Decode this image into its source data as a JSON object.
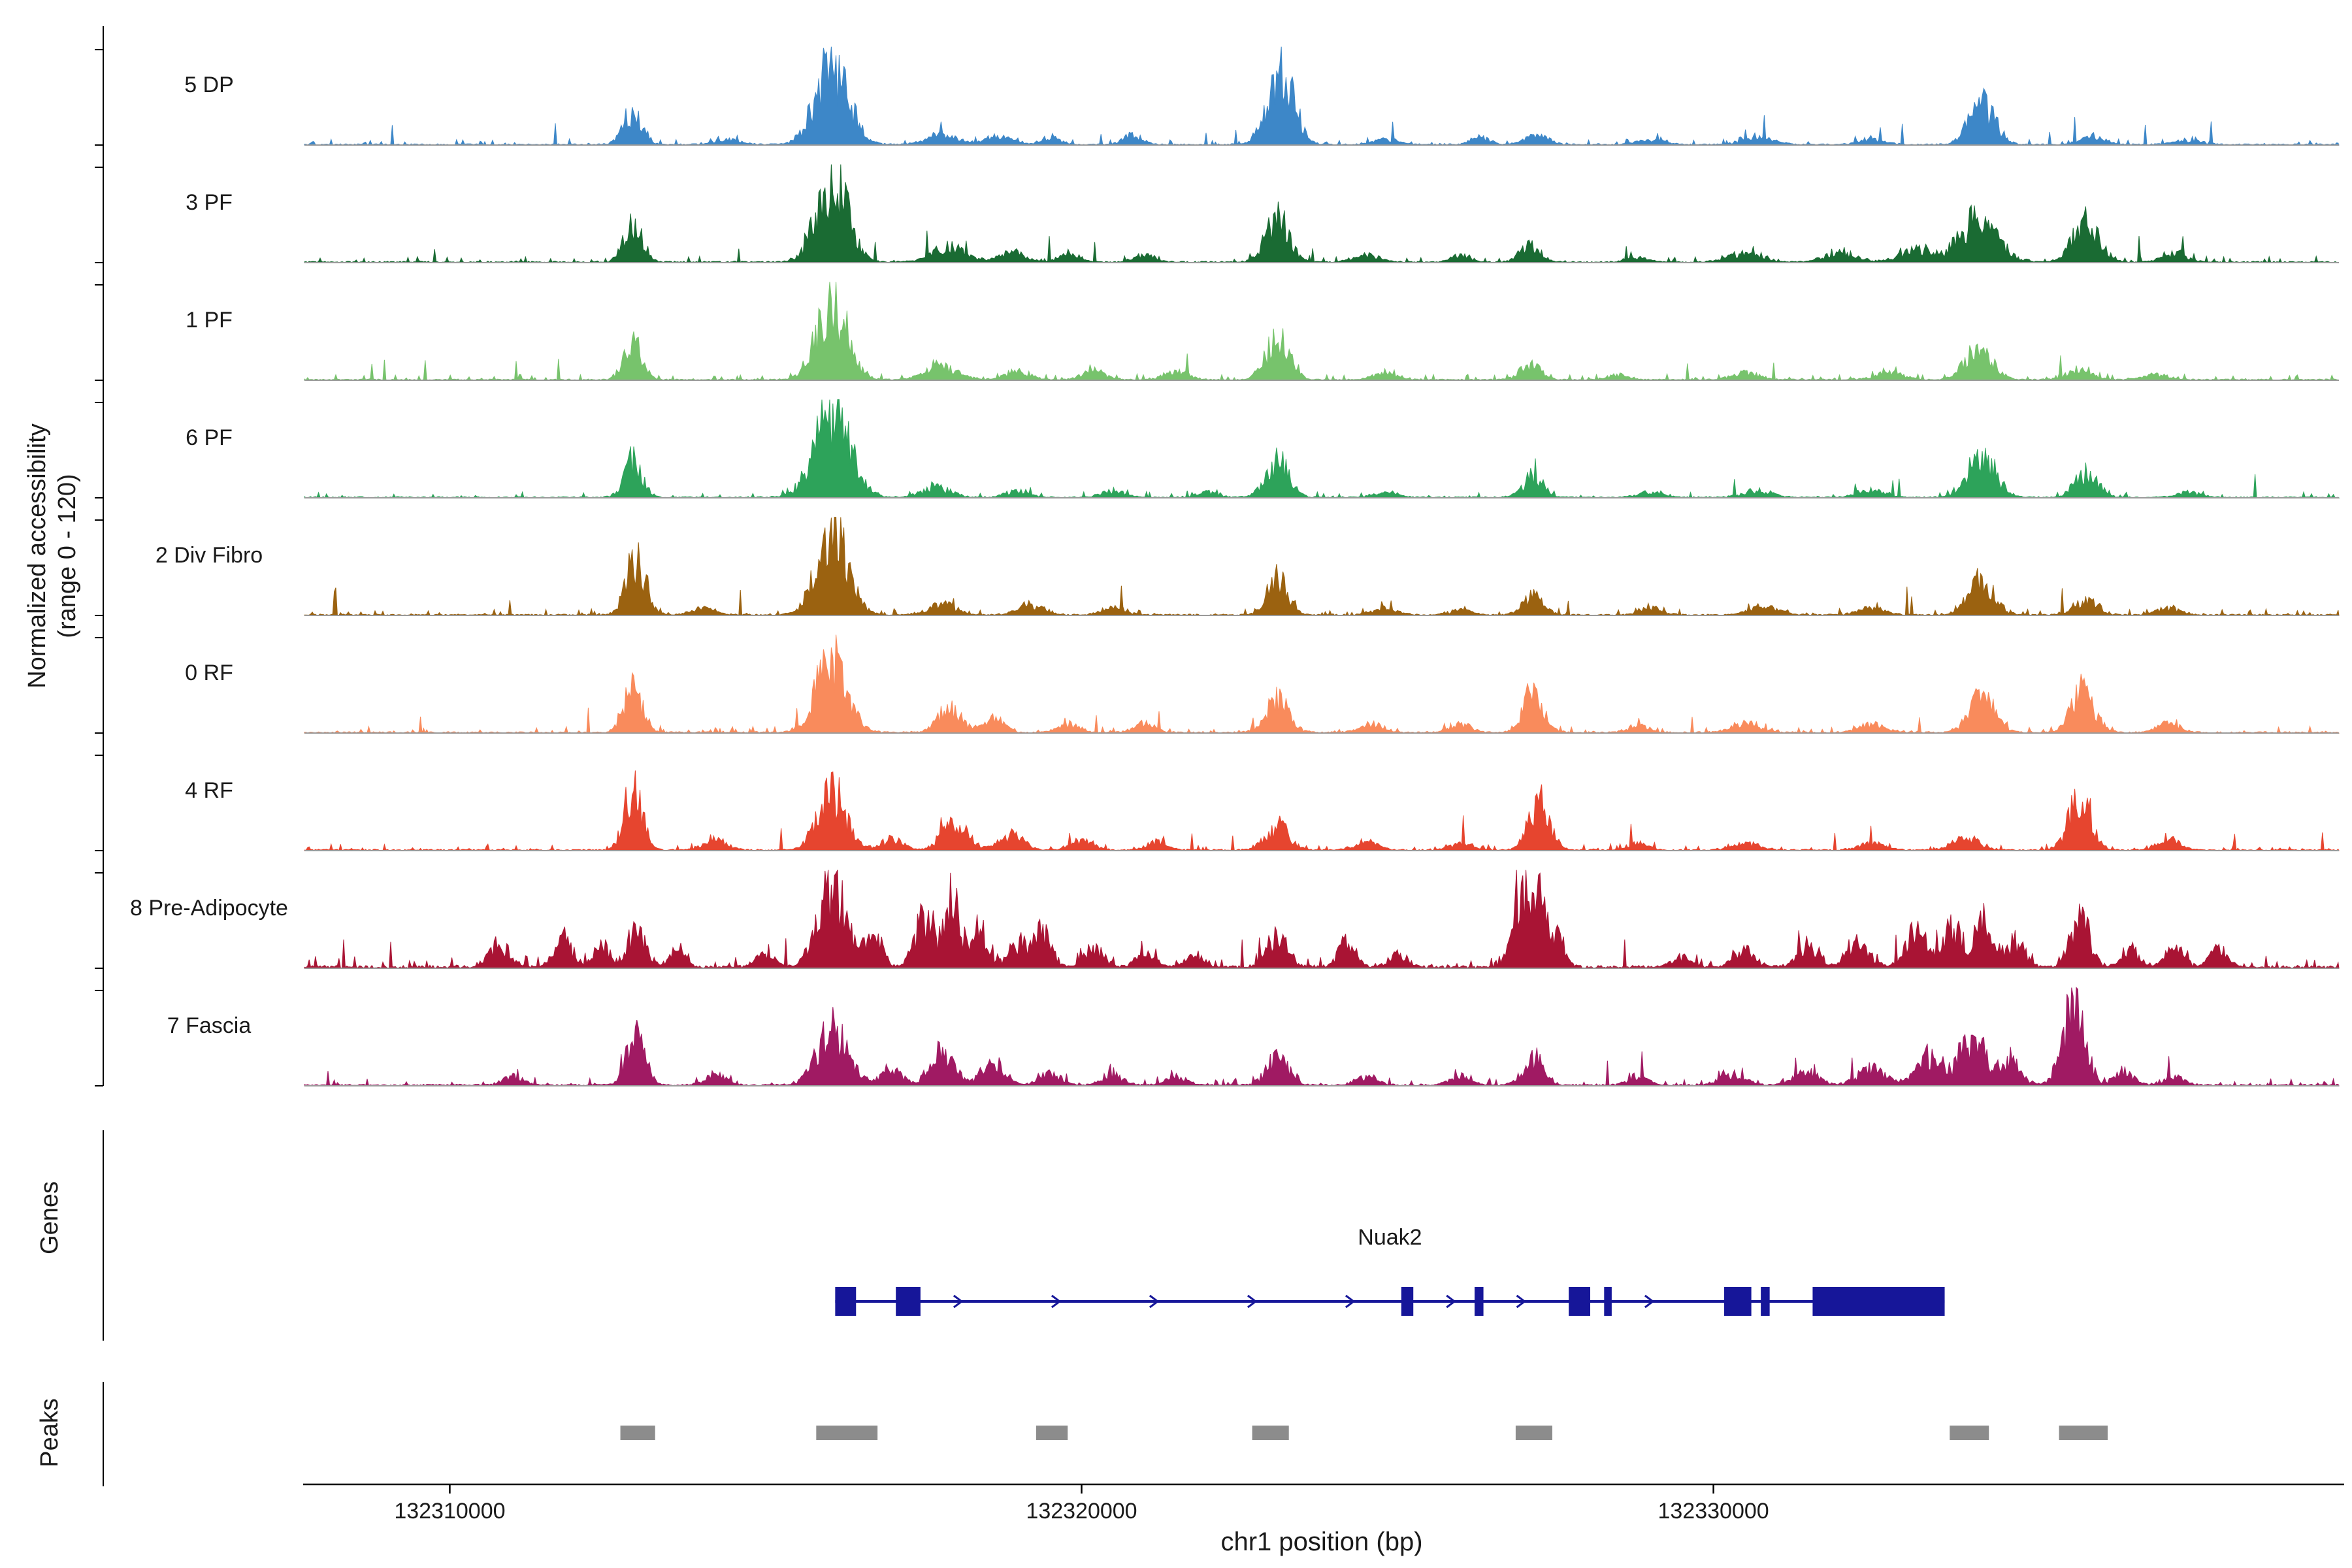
{
  "labels": {
    "y_axis_line1": "Normalized accessibility",
    "y_axis_line2": "(range 0 - 120)",
    "genes": "Genes",
    "peaks": "Peaks",
    "x_axis": "chr1 position (bp)"
  },
  "chart_data": {
    "type": "area",
    "title": "",
    "xlabel": "chr1 position (bp)",
    "ylabel": "Normalized accessibility (range 0 - 120)",
    "y_range_per_track": [
      0,
      120
    ],
    "x_range_bp": [
      132307700,
      132339900
    ],
    "x_ticks": [
      132310000,
      132320000,
      132330000
    ],
    "baseline_color": "#9a9a9a",
    "peak_color": "#8c8c8c",
    "tracks": [
      {
        "name": "5 DP",
        "color": "#3D87C8",
        "seed": 101,
        "noise": 0.045,
        "peaks": [
          [
            132312900,
            0.36,
            150
          ],
          [
            132314400,
            0.06,
            200
          ],
          [
            132316050,
            0.92,
            260
          ],
          [
            132317800,
            0.1,
            250
          ],
          [
            132318700,
            0.1,
            200
          ],
          [
            132319500,
            0.08,
            150
          ],
          [
            132320800,
            0.1,
            150
          ],
          [
            132323150,
            1.0,
            200
          ],
          [
            132324800,
            0.06,
            200
          ],
          [
            132326300,
            0.08,
            150
          ],
          [
            132327200,
            0.1,
            180
          ],
          [
            132329000,
            0.06,
            200
          ],
          [
            132330700,
            0.08,
            250
          ],
          [
            132332500,
            0.06,
            200
          ],
          [
            132334250,
            0.5,
            200
          ],
          [
            132336000,
            0.08,
            200
          ],
          [
            132337500,
            0.05,
            200
          ]
        ]
      },
      {
        "name": "3 PF",
        "color": "#1A6B33",
        "seed": 102,
        "noise": 0.05,
        "peaks": [
          [
            132312900,
            0.42,
            140
          ],
          [
            132316050,
            1.0,
            240
          ],
          [
            132317900,
            0.18,
            250
          ],
          [
            132318900,
            0.12,
            200
          ],
          [
            132319800,
            0.1,
            150
          ],
          [
            132321000,
            0.08,
            150
          ],
          [
            132323100,
            0.52,
            180
          ],
          [
            132324500,
            0.08,
            200
          ],
          [
            132326000,
            0.08,
            150
          ],
          [
            132327100,
            0.22,
            150
          ],
          [
            132328800,
            0.06,
            150
          ],
          [
            132330500,
            0.1,
            250
          ],
          [
            132332000,
            0.1,
            250
          ],
          [
            132333200,
            0.14,
            250
          ],
          [
            132334200,
            0.5,
            300
          ],
          [
            132335900,
            0.48,
            200
          ],
          [
            132337300,
            0.1,
            200
          ]
        ]
      },
      {
        "name": "1 PF",
        "color": "#77C36C",
        "seed": 103,
        "noise": 0.045,
        "peaks": [
          [
            132312900,
            0.48,
            140
          ],
          [
            132316050,
            0.92,
            240
          ],
          [
            132317800,
            0.15,
            250
          ],
          [
            132319000,
            0.1,
            200
          ],
          [
            132320200,
            0.1,
            180
          ],
          [
            132321500,
            0.1,
            180
          ],
          [
            132323100,
            0.48,
            180
          ],
          [
            132324800,
            0.08,
            180
          ],
          [
            132327100,
            0.18,
            160
          ],
          [
            132328500,
            0.06,
            160
          ],
          [
            132330500,
            0.08,
            220
          ],
          [
            132332800,
            0.08,
            220
          ],
          [
            132334200,
            0.35,
            220
          ],
          [
            132335800,
            0.12,
            200
          ],
          [
            132337000,
            0.06,
            200
          ]
        ]
      },
      {
        "name": "6 PF",
        "color": "#2DA35A",
        "seed": 104,
        "noise": 0.045,
        "peaks": [
          [
            132312900,
            0.42,
            140
          ],
          [
            132316050,
            1.0,
            280
          ],
          [
            132317700,
            0.12,
            220
          ],
          [
            132319000,
            0.08,
            180
          ],
          [
            132320500,
            0.08,
            180
          ],
          [
            132322000,
            0.06,
            160
          ],
          [
            132323100,
            0.42,
            180
          ],
          [
            132324800,
            0.07,
            180
          ],
          [
            132327150,
            0.25,
            160
          ],
          [
            132329000,
            0.06,
            180
          ],
          [
            132330700,
            0.08,
            220
          ],
          [
            132332500,
            0.08,
            200
          ],
          [
            132334250,
            0.48,
            220
          ],
          [
            132335900,
            0.28,
            180
          ],
          [
            132337500,
            0.06,
            180
          ]
        ]
      },
      {
        "name": "2 Div Fibro",
        "color": "#9B6210",
        "seed": 105,
        "noise": 0.05,
        "peaks": [
          [
            132312950,
            0.68,
            150
          ],
          [
            132314000,
            0.08,
            180
          ],
          [
            132316050,
            1.0,
            240
          ],
          [
            132317800,
            0.12,
            220
          ],
          [
            132319200,
            0.12,
            200
          ],
          [
            132320500,
            0.08,
            180
          ],
          [
            132323100,
            0.42,
            160
          ],
          [
            132324800,
            0.08,
            180
          ],
          [
            132326000,
            0.06,
            160
          ],
          [
            132327150,
            0.22,
            160
          ],
          [
            132329000,
            0.08,
            180
          ],
          [
            132330800,
            0.1,
            220
          ],
          [
            132332500,
            0.08,
            200
          ],
          [
            132334250,
            0.42,
            200
          ],
          [
            132335900,
            0.18,
            180
          ],
          [
            132337200,
            0.08,
            180
          ]
        ]
      },
      {
        "name": "0 RF",
        "color": "#F98B5C",
        "seed": 106,
        "noise": 0.05,
        "peaks": [
          [
            132312900,
            0.52,
            150
          ],
          [
            132316050,
            0.88,
            240
          ],
          [
            132317900,
            0.28,
            180
          ],
          [
            132318600,
            0.18,
            160
          ],
          [
            132319800,
            0.1,
            160
          ],
          [
            132321000,
            0.1,
            160
          ],
          [
            132323100,
            0.38,
            180
          ],
          [
            132324600,
            0.1,
            180
          ],
          [
            132326000,
            0.1,
            160
          ],
          [
            132327150,
            0.48,
            160
          ],
          [
            132328800,
            0.08,
            160
          ],
          [
            132330500,
            0.1,
            220
          ],
          [
            132332500,
            0.1,
            200
          ],
          [
            132334250,
            0.42,
            200
          ],
          [
            132335850,
            0.48,
            180
          ],
          [
            132337200,
            0.1,
            180
          ]
        ]
      },
      {
        "name": "4 RF",
        "color": "#E6452F",
        "seed": 107,
        "noise": 0.05,
        "peaks": [
          [
            132312900,
            0.72,
            140
          ],
          [
            132314200,
            0.12,
            180
          ],
          [
            132316050,
            0.68,
            220
          ],
          [
            132317000,
            0.12,
            180
          ],
          [
            132318000,
            0.3,
            200
          ],
          [
            132318900,
            0.18,
            180
          ],
          [
            132320000,
            0.12,
            180
          ],
          [
            132321200,
            0.1,
            160
          ],
          [
            132323100,
            0.28,
            180
          ],
          [
            132324500,
            0.1,
            180
          ],
          [
            132326000,
            0.08,
            160
          ],
          [
            132327250,
            0.62,
            160
          ],
          [
            132328800,
            0.08,
            160
          ],
          [
            132330500,
            0.08,
            220
          ],
          [
            132332500,
            0.08,
            200
          ],
          [
            132334000,
            0.14,
            200
          ],
          [
            132335800,
            0.68,
            170
          ],
          [
            132337200,
            0.12,
            180
          ]
        ]
      },
      {
        "name": "8 Pre-Adipocyte",
        "color": "#A91434",
        "seed": 108,
        "noise": 0.1,
        "peaks": [
          [
            132310800,
            0.25,
            160
          ],
          [
            132311800,
            0.35,
            140
          ],
          [
            132312400,
            0.28,
            120
          ],
          [
            132312950,
            0.42,
            140
          ],
          [
            132313600,
            0.18,
            120
          ],
          [
            132315000,
            0.15,
            140
          ],
          [
            132316050,
            0.95,
            220
          ],
          [
            132316700,
            0.35,
            140
          ],
          [
            132317500,
            0.55,
            140
          ],
          [
            132317950,
            0.8,
            130
          ],
          [
            132318400,
            0.45,
            130
          ],
          [
            132319000,
            0.3,
            140
          ],
          [
            132319400,
            0.45,
            130
          ],
          [
            132320200,
            0.22,
            140
          ],
          [
            132321000,
            0.18,
            140
          ],
          [
            132321800,
            0.15,
            140
          ],
          [
            132323100,
            0.38,
            160
          ],
          [
            132324200,
            0.28,
            140
          ],
          [
            132325000,
            0.15,
            140
          ],
          [
            132326900,
            0.75,
            120
          ],
          [
            132327150,
            0.95,
            130
          ],
          [
            132327500,
            0.4,
            120
          ],
          [
            132329500,
            0.12,
            140
          ],
          [
            132330500,
            0.2,
            160
          ],
          [
            132331500,
            0.25,
            160
          ],
          [
            132332300,
            0.3,
            160
          ],
          [
            132333200,
            0.4,
            160
          ],
          [
            132333800,
            0.45,
            150
          ],
          [
            132334300,
            0.55,
            150
          ],
          [
            132334800,
            0.3,
            140
          ],
          [
            132335800,
            0.55,
            150
          ],
          [
            132336600,
            0.2,
            140
          ],
          [
            132337300,
            0.25,
            140
          ],
          [
            132338000,
            0.2,
            140
          ]
        ]
      },
      {
        "name": "7 Fascia",
        "color": "#A01A63",
        "seed": 109,
        "noise": 0.06,
        "peaks": [
          [
            132311000,
            0.1,
            160
          ],
          [
            132312950,
            0.62,
            140
          ],
          [
            132314200,
            0.12,
            160
          ],
          [
            132316050,
            0.66,
            240
          ],
          [
            132317000,
            0.15,
            180
          ],
          [
            132317800,
            0.42,
            180
          ],
          [
            132318600,
            0.3,
            170
          ],
          [
            132319500,
            0.15,
            160
          ],
          [
            132320500,
            0.12,
            160
          ],
          [
            132321500,
            0.1,
            160
          ],
          [
            132323100,
            0.32,
            170
          ],
          [
            132324500,
            0.1,
            170
          ],
          [
            132326000,
            0.1,
            160
          ],
          [
            132327150,
            0.32,
            160
          ],
          [
            132328800,
            0.1,
            160
          ],
          [
            132330300,
            0.12,
            200
          ],
          [
            132331500,
            0.15,
            200
          ],
          [
            132332500,
            0.2,
            200
          ],
          [
            132333400,
            0.35,
            200
          ],
          [
            132334100,
            0.55,
            200
          ],
          [
            132334700,
            0.3,
            160
          ],
          [
            132335700,
            0.95,
            170
          ],
          [
            132336500,
            0.15,
            160
          ],
          [
            132337300,
            0.1,
            160
          ]
        ]
      }
    ],
    "gene": {
      "name": "Nuak2",
      "strand": "+",
      "color": "#161699",
      "start": 132316100,
      "end": 132333660,
      "exons": [
        [
          132316100,
          132316430
        ],
        [
          132317060,
          132317450
        ],
        [
          132325060,
          132325250
        ],
        [
          132326220,
          132326360
        ],
        [
          132327710,
          132328050
        ],
        [
          132328270,
          132328390
        ],
        [
          132330170,
          132330600
        ],
        [
          132330750,
          132330890
        ],
        [
          132331570,
          132333660
        ]
      ]
    },
    "peaks_track": [
      [
        132312700,
        132313250
      ],
      [
        132315800,
        132316770
      ],
      [
        132319280,
        132319780
      ],
      [
        132322700,
        132323280
      ],
      [
        132326870,
        132327450
      ],
      [
        132333740,
        132334360
      ],
      [
        132335470,
        132336240
      ]
    ]
  }
}
